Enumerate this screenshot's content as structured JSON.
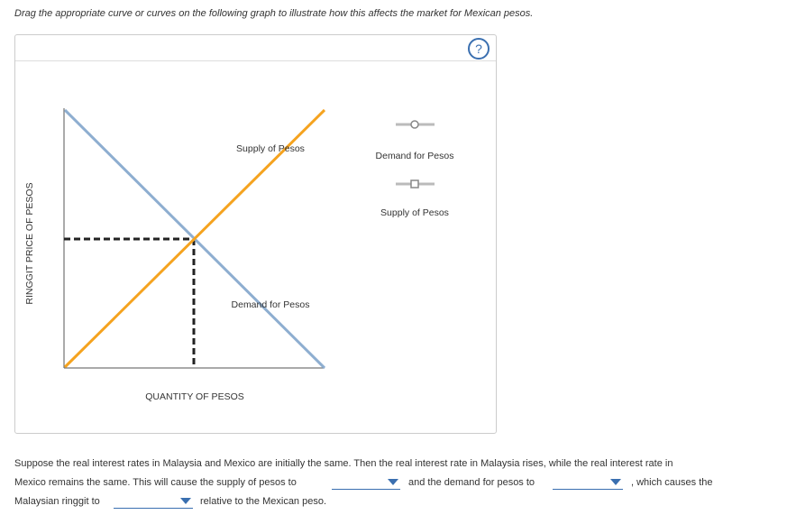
{
  "instruction": "Drag the appropriate curve or curves on the following graph to illustrate how this affects the market for Mexican pesos.",
  "help_icon": "?",
  "graph": {
    "y_axis_label": "RINGGIT PRICE OF PESOS",
    "x_axis_label": "QUANTITY OF PESOS",
    "supply_label": "Supply of Pesos",
    "demand_label": "Demand for Pesos"
  },
  "palette": {
    "items": [
      {
        "label": "Demand for Pesos"
      },
      {
        "label": "Supply of Pesos"
      }
    ]
  },
  "question": {
    "line_1": "Suppose the real interest rates in Malaysia and Mexico are initially the same. Then the real interest rate in Malaysia rises, while the real interest rate in",
    "line_2a": "Mexico remains the same. This will cause the supply of pesos to",
    "line_2b": "and the demand for pesos to",
    "line_2c": ", which causes the",
    "line_3a": "Malaysian ringgit to",
    "line_3b": "relative to the Mexican peso."
  }
}
